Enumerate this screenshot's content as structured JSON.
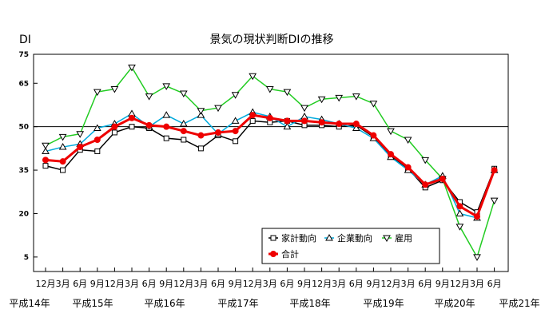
{
  "chart_data": {
    "type": "line",
    "title": "景気の現状判断DIの推移",
    "ylabel": "DI",
    "ylim": [
      0,
      75
    ],
    "y_ticks": [
      5,
      20,
      35,
      50,
      65,
      75
    ],
    "reference_line": 50,
    "x_labels": [
      "12月",
      "3月",
      "6月",
      "9月",
      "12月",
      "3月",
      "6月",
      "9月",
      "12月",
      "3月",
      "6月",
      "9月",
      "12月",
      "3月",
      "6月",
      "9月",
      "12月",
      "3月",
      "6月",
      "9月",
      "12月",
      "3月",
      "6月",
      "9月",
      "12月",
      "3月",
      "6月"
    ],
    "era_labels": [
      "平成14年",
      "平成15年",
      "平成16年",
      "平成17年",
      "平成18年",
      "平成19年",
      "平成20年",
      "平成21年"
    ],
    "legend_position": "bottom-right",
    "series": [
      {
        "name": "家計動向",
        "color": "#000000",
        "marker": "square",
        "values": [
          36.5,
          35.0,
          42.0,
          41.5,
          48.0,
          50.0,
          49.5,
          46.0,
          45.5,
          42.5,
          47.0,
          45.0,
          52.0,
          51.5,
          52.0,
          50.5,
          50.5,
          50.0,
          50.5,
          46.5,
          40.0,
          35.5,
          29.0,
          31.5,
          24.0,
          20.5,
          35.5
        ]
      },
      {
        "name": "企業動向",
        "color": "#00aadd",
        "marker": "triangle-up",
        "values": [
          41.5,
          43.0,
          44.0,
          49.5,
          51.0,
          54.5,
          50.0,
          54.0,
          51.0,
          54.0,
          47.5,
          52.0,
          55.0,
          53.5,
          50.0,
          53.5,
          52.5,
          51.0,
          49.5,
          46.0,
          39.5,
          35.0,
          30.0,
          33.0,
          20.0,
          18.5,
          35.0
        ]
      },
      {
        "name": "雇用",
        "color": "#22cc22",
        "marker": "triangle-down",
        "values": [
          43.5,
          46.5,
          47.5,
          62.0,
          63.0,
          70.5,
          60.5,
          64.0,
          61.5,
          55.5,
          56.5,
          61.0,
          67.5,
          63.0,
          62.0,
          56.5,
          59.5,
          60.0,
          60.5,
          58.0,
          48.5,
          45.5,
          38.5,
          32.0,
          15.5,
          5.0,
          24.5
        ]
      },
      {
        "name": "合計",
        "color": "#ee0000",
        "marker": "circle",
        "values": [
          38.5,
          38.0,
          43.0,
          45.5,
          50.0,
          53.0,
          50.5,
          50.0,
          48.5,
          47.0,
          48.0,
          48.5,
          54.0,
          53.0,
          52.0,
          52.0,
          51.5,
          51.0,
          51.0,
          47.0,
          40.5,
          36.0,
          30.0,
          32.0,
          22.5,
          19.0,
          35.0
        ]
      }
    ]
  }
}
